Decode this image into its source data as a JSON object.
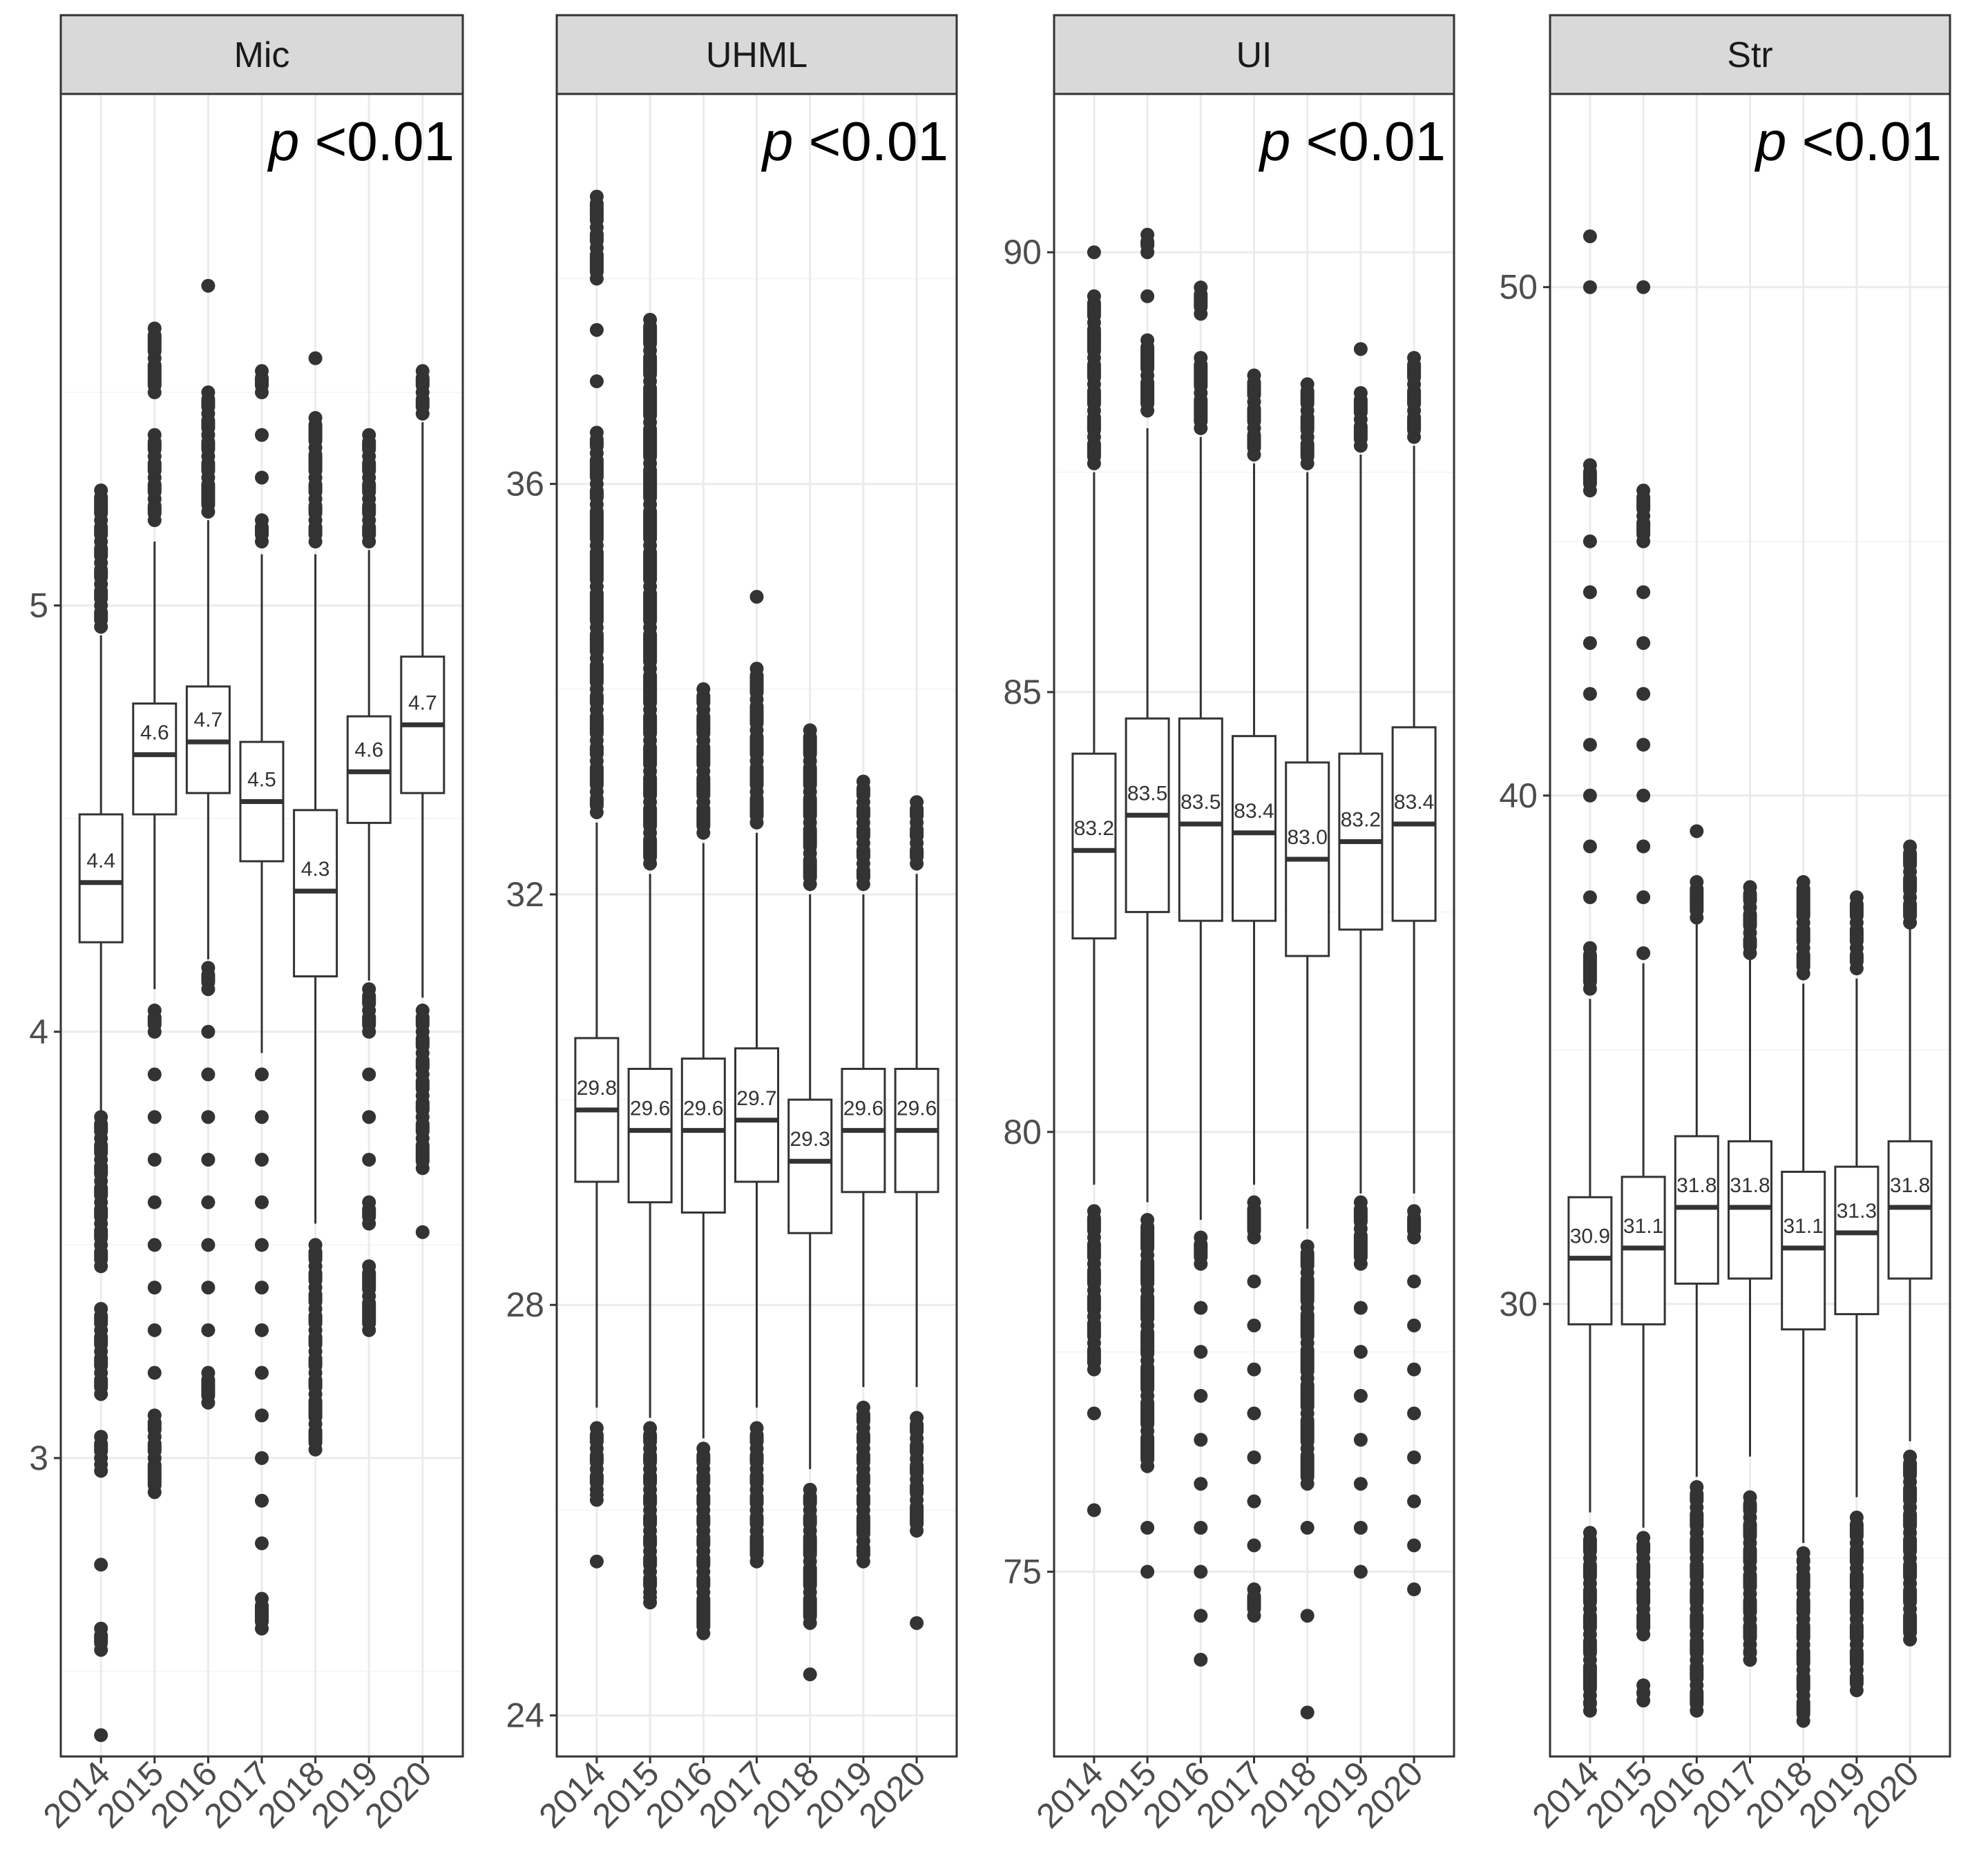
{
  "chart_data": [
    {
      "type": "boxplot",
      "title": "Mic",
      "annotation": {
        "p": "p",
        "rest": " <0.01"
      },
      "categories": [
        "2014",
        "2015",
        "2016",
        "2017",
        "2018",
        "2019",
        "2020"
      ],
      "ylim": [
        2.3,
        6.2
      ],
      "yticks": [
        3,
        4,
        5
      ],
      "ytick_labels": [
        "3",
        "4",
        "5"
      ],
      "boxes": [
        {
          "q1": 4.21,
          "median": 4.35,
          "q3": 4.51,
          "lower": 3.81,
          "upper": 4.93,
          "mean_label": "4.4",
          "outliers": [
            3.0,
            3.05,
            3.15,
            3.2,
            3.25,
            3.3,
            3.35,
            3.45,
            3.5,
            3.55,
            3.6,
            3.65,
            3.7,
            3.75,
            3.8,
            2.97,
            2.75,
            2.6,
            2.55,
            2.35,
            4.95,
            5.0,
            5.05,
            5.1,
            5.15,
            5.2,
            5.27
          ]
        },
        {
          "q1": 4.51,
          "median": 4.65,
          "q3": 4.77,
          "lower": 4.1,
          "upper": 5.15,
          "mean_label": "4.6",
          "outliers": [
            2.92,
            3.0,
            3.05,
            3.1,
            3.2,
            3.3,
            3.4,
            3.5,
            3.6,
            3.7,
            3.8,
            3.9,
            4.0,
            4.05,
            5.2,
            5.25,
            5.3,
            5.35,
            5.4,
            5.5,
            5.58,
            5.65
          ]
        },
        {
          "q1": 4.56,
          "median": 4.68,
          "q3": 4.81,
          "lower": 4.17,
          "upper": 5.2,
          "mean_label": "4.7",
          "outliers": [
            3.13,
            3.2,
            3.3,
            3.4,
            3.5,
            3.6,
            3.7,
            3.8,
            3.9,
            4.0,
            4.1,
            4.15,
            5.22,
            5.3,
            5.35,
            5.4,
            5.45,
            5.5,
            5.75
          ]
        },
        {
          "q1": 4.4,
          "median": 4.54,
          "q3": 4.68,
          "lower": 3.95,
          "upper": 5.12,
          "mean_label": "4.5",
          "outliers": [
            2.6,
            2.67,
            2.8,
            2.9,
            3.0,
            3.1,
            3.2,
            3.3,
            3.4,
            3.5,
            3.6,
            3.7,
            3.8,
            3.9,
            5.15,
            5.2,
            5.3,
            5.4,
            5.5,
            5.55
          ]
        },
        {
          "q1": 4.13,
          "median": 4.33,
          "q3": 4.52,
          "lower": 3.55,
          "upper": 5.12,
          "mean_label": "4.3",
          "outliers": [
            3.02,
            3.08,
            3.15,
            3.2,
            3.25,
            3.3,
            3.35,
            3.4,
            3.45,
            3.5,
            5.15,
            5.2,
            5.25,
            5.3,
            5.37,
            5.44,
            5.58
          ]
        },
        {
          "q1": 4.49,
          "median": 4.61,
          "q3": 4.74,
          "lower": 4.12,
          "upper": 5.13,
          "mean_label": "4.6",
          "outliers": [
            3.3,
            3.38,
            3.45,
            3.55,
            3.6,
            3.7,
            3.8,
            3.9,
            4.0,
            4.05,
            4.1,
            5.15,
            5.2,
            5.25,
            5.3,
            5.35,
            5.4
          ]
        },
        {
          "q1": 4.56,
          "median": 4.72,
          "q3": 4.88,
          "lower": 4.08,
          "upper": 5.43,
          "mean_label": "4.7",
          "outliers": [
            3.53,
            3.68,
            3.75,
            3.8,
            3.85,
            3.9,
            3.95,
            4.0,
            4.05,
            5.45,
            5.5,
            5.55
          ]
        }
      ]
    },
    {
      "type": "boxplot",
      "title": "UHML",
      "annotation": {
        "p": "p",
        "rest": " <0.01"
      },
      "categories": [
        "2014",
        "2015",
        "2016",
        "2017",
        "2018",
        "2019",
        "2020"
      ],
      "ylim": [
        23.6,
        39.8
      ],
      "yticks": [
        24,
        28,
        32,
        36
      ],
      "ytick_labels": [
        "24",
        "28",
        "32",
        "36"
      ],
      "boxes": [
        {
          "q1": 29.2,
          "median": 29.9,
          "q3": 30.6,
          "lower": 27.0,
          "upper": 32.7,
          "mean_label": "29.8",
          "outliers": [
            25.5,
            26.1,
            26.2,
            26.4,
            26.6,
            26.8,
            32.8,
            33.0,
            33.3,
            33.5,
            33.8,
            34.0,
            34.3,
            34.6,
            35.0,
            35.4,
            35.8,
            36.0,
            36.3,
            36.5,
            37.0,
            37.5,
            38.0,
            38.3,
            38.5,
            38.8
          ]
        },
        {
          "q1": 29.0,
          "median": 29.7,
          "q3": 30.3,
          "lower": 26.9,
          "upper": 32.2,
          "mean_label": "29.6",
          "outliers": [
            25.1,
            25.2,
            25.4,
            25.6,
            25.8,
            26.0,
            26.2,
            26.4,
            26.6,
            26.8,
            32.3,
            32.6,
            32.9,
            33.2,
            33.5,
            33.8,
            34.2,
            34.6,
            35.0,
            35.4,
            35.8,
            36.2,
            36.6,
            37.0,
            37.3,
            37.6
          ]
        },
        {
          "q1": 28.9,
          "median": 29.7,
          "q3": 30.4,
          "lower": 26.7,
          "upper": 32.5,
          "mean_label": "29.6",
          "outliers": [
            24.8,
            25.2,
            25.4,
            25.6,
            25.8,
            26.0,
            26.2,
            26.4,
            26.6,
            32.6,
            32.9,
            33.2,
            33.5,
            33.8,
            34.0
          ]
        },
        {
          "q1": 29.2,
          "median": 29.8,
          "q3": 30.5,
          "lower": 27.0,
          "upper": 32.6,
          "mean_label": "29.7",
          "outliers": [
            25.5,
            25.8,
            26.0,
            26.2,
            26.4,
            26.6,
            26.8,
            32.7,
            33.0,
            33.3,
            33.6,
            33.9,
            34.2,
            34.9
          ]
        },
        {
          "q1": 28.7,
          "median": 29.4,
          "q3": 30.0,
          "lower": 26.4,
          "upper": 32.0,
          "mean_label": "29.3",
          "outliers": [
            24.4,
            24.9,
            25.2,
            25.5,
            25.8,
            26.0,
            26.2,
            32.1,
            32.4,
            32.7,
            33.0,
            33.3,
            33.6
          ]
        },
        {
          "q1": 29.1,
          "median": 29.7,
          "q3": 30.3,
          "lower": 27.2,
          "upper": 32.0,
          "mean_label": "29.6",
          "outliers": [
            25.5,
            25.7,
            26.0,
            26.2,
            26.4,
            26.6,
            26.8,
            27.0,
            32.1,
            32.3,
            32.5,
            32.7,
            32.9,
            33.1
          ]
        },
        {
          "q1": 29.1,
          "median": 29.7,
          "q3": 30.3,
          "lower": 27.2,
          "upper": 32.2,
          "mean_label": "29.6",
          "outliers": [
            24.9,
            25.8,
            26.1,
            26.3,
            26.5,
            26.7,
            26.9,
            32.3,
            32.5,
            32.7,
            32.9
          ]
        }
      ]
    },
    {
      "type": "boxplot",
      "title": "UI",
      "annotation": {
        "p": "p",
        "rest": " <0.01"
      },
      "categories": [
        "2014",
        "2015",
        "2016",
        "2017",
        "2018",
        "2019",
        "2020"
      ],
      "ylim": [
        72.9,
        91.8
      ],
      "yticks": [
        75,
        80,
        85,
        90
      ],
      "ytick_labels": [
        "75",
        "80",
        "85",
        "90"
      ],
      "boxes": [
        {
          "q1": 82.2,
          "median": 83.2,
          "q3": 84.3,
          "lower": 79.4,
          "upper": 87.5,
          "mean_label": "83.2",
          "outliers": [
            75.7,
            76.8,
            77.3,
            77.6,
            77.9,
            78.2,
            78.5,
            78.8,
            79.1,
            87.6,
            87.9,
            88.2,
            88.5,
            88.8,
            89.2,
            89.5,
            90.0
          ]
        },
        {
          "q1": 82.5,
          "median": 83.6,
          "q3": 84.7,
          "lower": 79.2,
          "upper": 88.0,
          "mean_label": "83.5",
          "outliers": [
            75.0,
            75.5,
            76.2,
            76.6,
            77.0,
            77.4,
            77.8,
            78.2,
            78.6,
            79.0,
            88.2,
            88.6,
            89.0,
            89.5,
            90.0,
            90.2
          ]
        },
        {
          "q1": 82.4,
          "median": 83.5,
          "q3": 84.7,
          "lower": 79.0,
          "upper": 87.9,
          "mean_label": "83.5",
          "outliers": [
            74.0,
            74.5,
            75.0,
            75.5,
            76.0,
            76.5,
            77.0,
            77.5,
            78.0,
            78.5,
            78.8,
            88.0,
            88.4,
            88.8,
            89.3,
            89.6
          ]
        },
        {
          "q1": 82.4,
          "median": 83.4,
          "q3": 84.5,
          "lower": 79.4,
          "upper": 87.6,
          "mean_label": "83.4",
          "outliers": [
            74.5,
            74.8,
            75.3,
            75.8,
            76.3,
            76.8,
            77.3,
            77.8,
            78.3,
            78.8,
            79.2,
            87.7,
            88.0,
            88.3,
            88.6
          ]
        },
        {
          "q1": 82.0,
          "median": 83.1,
          "q3": 84.2,
          "lower": 78.9,
          "upper": 87.5,
          "mean_label": "83.0",
          "outliers": [
            73.4,
            74.5,
            75.5,
            76.0,
            76.4,
            76.8,
            77.2,
            77.6,
            78.0,
            78.4,
            78.7,
            87.6,
            87.9,
            88.2,
            88.5
          ]
        },
        {
          "q1": 82.3,
          "median": 83.3,
          "q3": 84.3,
          "lower": 79.3,
          "upper": 87.7,
          "mean_label": "83.2",
          "outliers": [
            75.0,
            75.5,
            76.0,
            76.5,
            77.0,
            77.5,
            78.0,
            78.5,
            78.9,
            79.2,
            87.8,
            88.1,
            88.4,
            88.9
          ]
        },
        {
          "q1": 82.4,
          "median": 83.5,
          "q3": 84.6,
          "lower": 79.3,
          "upper": 87.8,
          "mean_label": "83.4",
          "outliers": [
            74.8,
            75.3,
            75.8,
            76.3,
            76.8,
            77.3,
            77.8,
            78.3,
            78.8,
            79.1,
            87.9,
            88.2,
            88.5,
            88.8
          ]
        }
      ]
    },
    {
      "type": "boxplot",
      "title": "Str",
      "annotation": {
        "p": "p",
        "rest": " <0.01"
      },
      "categories": [
        "2014",
        "2015",
        "2016",
        "2017",
        "2018",
        "2019",
        "2020"
      ],
      "ylim": [
        21.1,
        53.8
      ],
      "yticks": [
        30,
        40,
        50
      ],
      "ytick_labels": [
        "30",
        "40",
        "50"
      ],
      "boxes": [
        {
          "q1": 29.6,
          "median": 30.9,
          "q3": 32.1,
          "lower": 25.9,
          "upper": 36.0,
          "mean_label": "30.9",
          "outliers": [
            22.0,
            22.3,
            23.0,
            23.5,
            24.0,
            24.5,
            25.0,
            25.5,
            36.2,
            37.0,
            38.0,
            39.0,
            40.0,
            41.0,
            42.0,
            43.0,
            44.0,
            45.0,
            46.0,
            46.5,
            50.0,
            51.0
          ]
        },
        {
          "q1": 29.6,
          "median": 31.1,
          "q3": 32.5,
          "lower": 25.6,
          "upper": 36.7,
          "mean_label": "31.1",
          "outliers": [
            22.2,
            22.5,
            23.5,
            24.0,
            24.5,
            25.0,
            25.4,
            36.9,
            38.0,
            39.0,
            40.0,
            41.0,
            42.0,
            43.0,
            44.0,
            45.0,
            45.5,
            46.0,
            50.0
          ]
        },
        {
          "q1": 30.4,
          "median": 31.9,
          "q3": 33.3,
          "lower": 26.6,
          "upper": 37.5,
          "mean_label": "31.8",
          "outliers": [
            22.0,
            22.5,
            23.0,
            23.5,
            24.0,
            24.5,
            25.0,
            25.5,
            26.0,
            26.4,
            37.6,
            38.3,
            39.3
          ]
        },
        {
          "q1": 30.5,
          "median": 31.9,
          "q3": 33.2,
          "lower": 27.0,
          "upper": 36.8,
          "mean_label": "31.8",
          "outliers": [
            23.0,
            23.3,
            23.8,
            24.3,
            24.8,
            25.3,
            25.8,
            26.2,
            36.9,
            37.3,
            37.8,
            38.2
          ]
        },
        {
          "q1": 29.5,
          "median": 31.1,
          "q3": 32.6,
          "lower": 25.3,
          "upper": 36.3,
          "mean_label": "31.1",
          "outliers": [
            21.8,
            22.3,
            22.8,
            23.3,
            23.8,
            24.3,
            24.8,
            25.1,
            36.5,
            37.0,
            37.5,
            38.3
          ]
        },
        {
          "q1": 29.8,
          "median": 31.4,
          "q3": 32.7,
          "lower": 26.2,
          "upper": 36.4,
          "mean_label": "31.3",
          "outliers": [
            22.4,
            22.8,
            23.3,
            23.8,
            24.3,
            24.8,
            25.3,
            25.8,
            36.6,
            37.0,
            37.5,
            38.0
          ]
        },
        {
          "q1": 30.5,
          "median": 31.9,
          "q3": 33.2,
          "lower": 27.3,
          "upper": 37.4,
          "mean_label": "31.8",
          "outliers": [
            23.4,
            24.0,
            24.5,
            25.0,
            25.5,
            26.0,
            26.5,
            27.0,
            37.5,
            38.0,
            38.5,
            39.0
          ]
        }
      ]
    }
  ]
}
